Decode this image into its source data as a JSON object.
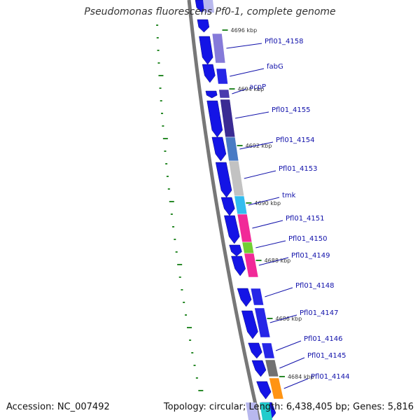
{
  "title": "Pseudomonas fluorescens Pf0-1, complete genome",
  "accession": "Accession: NC_007492",
  "stats": "Topology: circular; Length: 6,438,405 bp; Genes: 5,816",
  "colors": {
    "backbone": "#777777",
    "gene_blue": "#1414e6",
    "gc_skew_dots": "#2a8a2a",
    "label": "#1010aa",
    "tick": "#2a8a2a"
  },
  "tick_labels": [
    "4696 kbp",
    "4694 kbp",
    "4692 kbp",
    "4690 kbp",
    "4688 kbp",
    "4686 kbp",
    "4684 kbp"
  ],
  "genes": [
    {
      "name": "Pfl01_4158",
      "color": "#7b6fd6"
    },
    {
      "name": "fabG",
      "color": "#1414e6"
    },
    {
      "name": "acpP",
      "color": "#3a2aa8"
    },
    {
      "name": "Pfl01_4155",
      "color": "#2a1a8a"
    },
    {
      "name": "Pfl01_4154",
      "color": "#3a70c0"
    },
    {
      "name": "Pfl01_4153",
      "color": "#bdbdbd"
    },
    {
      "name": "tmk",
      "color": "#22b8ee"
    },
    {
      "name": "Pfl01_4151",
      "color": "#f01890"
    },
    {
      "name": "Pfl01_4150",
      "color": "#66cc22"
    },
    {
      "name": "Pfl01_4149",
      "color": "#f01890"
    },
    {
      "name": "Pfl01_4148",
      "color": "#1414e6"
    },
    {
      "name": "Pfl01_4147",
      "color": "#1414e6"
    },
    {
      "name": "Pfl01_4146",
      "color": "#1414e6"
    },
    {
      "name": "Pfl01_4145",
      "color": "#666666"
    },
    {
      "name": "Pfl01_4144",
      "color": "#ff8c00"
    }
  ]
}
